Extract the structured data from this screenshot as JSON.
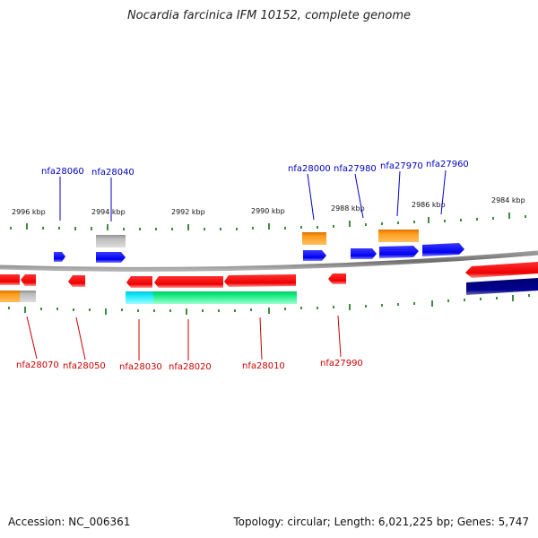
{
  "title": "Nocardia farcinica IFM 10152, complete genome",
  "footer": {
    "accession": "Accession: NC_006361",
    "summary": "Topology: circular; Length: 6,021,225 bp; Genes: 5,747"
  },
  "colors": {
    "forward_gene": "#0000ff",
    "reverse_gene": "#ff0000",
    "cds_orange": "#ff8c00",
    "cds_gray": "#aaaaaa",
    "cds_cyan": "#00e5ee",
    "cds_green": "#00ee76",
    "cds_navy": "#000080",
    "backbone": "#808080",
    "tick": "#006400",
    "top_label": "#0000bb",
    "bottom_label": "#cc0000"
  },
  "scale_labels": [
    "2996 kbp",
    "2994 kbp",
    "2992 kbp",
    "2990 kbp",
    "2988 kbp",
    "2986 kbp",
    "2984 kbp"
  ],
  "top_genes": [
    "nfa28060",
    "nfa28040",
    "nfa28000",
    "nfa27980",
    "nfa27970",
    "nfa27960"
  ],
  "bottom_genes": [
    "nfa28070",
    "nfa28050",
    "nfa28030",
    "nfa28020",
    "nfa28010",
    "nfa27990"
  ]
}
